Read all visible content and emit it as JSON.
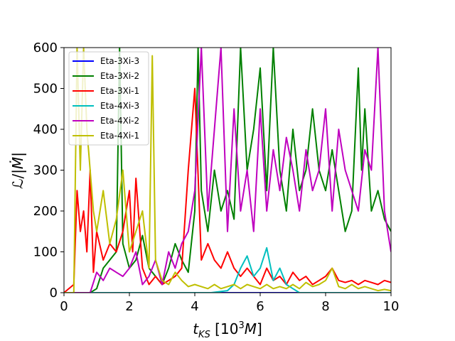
{
  "chart_data": {
    "type": "line",
    "title": "",
    "xlabel": "t_KS [10^3 M]",
    "ylabel": "L/|Ṁ|",
    "xlim": [
      0,
      10
    ],
    "ylim": [
      0,
      600
    ],
    "xticks": [
      "0",
      "2",
      "4",
      "6",
      "8",
      "10"
    ],
    "yticks": [
      "0",
      "100",
      "200",
      "300",
      "400",
      "500",
      "600"
    ],
    "grid": false,
    "legend_position": "top-left",
    "series": [
      {
        "name": "Eta-3Xi-3",
        "color": "#0000ff",
        "x": [
          0,
          10
        ],
        "y": [
          0,
          0
        ]
      },
      {
        "name": "Eta-3Xi-2",
        "color": "#008000",
        "x": [
          0,
          0.3,
          0.5,
          0.8,
          1.0,
          1.2,
          1.4,
          1.6,
          1.7,
          1.8,
          2.0,
          2.2,
          2.4,
          2.6,
          2.8,
          3.0,
          3.2,
          3.4,
          3.6,
          3.8,
          4.0,
          4.1,
          4.2,
          4.4,
          4.6,
          4.8,
          5.0,
          5.2,
          5.4,
          5.6,
          5.8,
          6.0,
          6.2,
          6.4,
          6.6,
          6.8,
          7.0,
          7.2,
          7.4,
          7.6,
          7.8,
          8.0,
          8.2,
          8.4,
          8.6,
          8.8,
          9.0,
          9.1,
          9.2,
          9.4,
          9.6,
          9.8,
          10.0
        ],
        "y": [
          0,
          0,
          0,
          0,
          10,
          60,
          80,
          100,
          600,
          120,
          60,
          80,
          140,
          60,
          40,
          20,
          60,
          120,
          80,
          50,
          200,
          600,
          250,
          150,
          300,
          200,
          250,
          180,
          600,
          300,
          400,
          550,
          250,
          600,
          300,
          200,
          400,
          250,
          300,
          450,
          300,
          250,
          350,
          250,
          150,
          200,
          550,
          300,
          450,
          200,
          250,
          180,
          150
        ]
      },
      {
        "name": "Eta-3Xi-1",
        "color": "#ff0000",
        "x": [
          0,
          0.3,
          0.4,
          0.5,
          0.6,
          0.7,
          0.8,
          0.9,
          1.0,
          1.2,
          1.4,
          1.6,
          1.8,
          2.0,
          2.1,
          2.2,
          2.4,
          2.6,
          2.8,
          3.0,
          3.2,
          3.4,
          3.6,
          3.8,
          4.0,
          4.2,
          4.4,
          4.6,
          4.8,
          5.0,
          5.2,
          5.4,
          5.6,
          5.8,
          6.0,
          6.2,
          6.4,
          6.6,
          6.8,
          7.0,
          7.2,
          7.4,
          7.6,
          7.8,
          8.0,
          8.2,
          8.4,
          8.6,
          8.8,
          9.0,
          9.2,
          9.4,
          9.6,
          9.8,
          10.0
        ],
        "y": [
          0,
          20,
          250,
          150,
          200,
          100,
          300,
          50,
          150,
          80,
          120,
          100,
          150,
          250,
          100,
          280,
          60,
          20,
          40,
          20,
          30,
          40,
          60,
          300,
          500,
          80,
          120,
          80,
          60,
          100,
          60,
          40,
          60,
          40,
          20,
          60,
          30,
          40,
          20,
          50,
          30,
          40,
          20,
          30,
          40,
          60,
          30,
          25,
          30,
          20,
          30,
          25,
          20,
          30,
          25
        ]
      },
      {
        "name": "Eta-4Xi-3",
        "color": "#00bfbf",
        "x": [
          0,
          4.5,
          5.0,
          5.2,
          5.4,
          5.6,
          5.8,
          6.0,
          6.2,
          6.4,
          6.6,
          6.8,
          7.0,
          7.2,
          7.4,
          10.0
        ],
        "y": [
          0,
          0,
          5,
          20,
          60,
          90,
          40,
          60,
          110,
          30,
          60,
          20,
          10,
          0,
          0,
          0
        ]
      },
      {
        "name": "Eta-4Xi-2",
        "color": "#bf00bf",
        "x": [
          0,
          0.8,
          1.0,
          1.2,
          1.4,
          1.6,
          1.8,
          2.0,
          2.2,
          2.4,
          2.6,
          2.8,
          3.0,
          3.2,
          3.4,
          3.6,
          3.8,
          4.0,
          4.2,
          4.4,
          4.6,
          4.8,
          5.0,
          5.2,
          5.4,
          5.6,
          5.8,
          6.0,
          6.2,
          6.4,
          6.6,
          6.8,
          7.0,
          7.2,
          7.4,
          7.6,
          7.8,
          8.0,
          8.2,
          8.4,
          8.6,
          8.8,
          9.0,
          9.2,
          9.4,
          9.6,
          9.8,
          10.0
        ],
        "y": [
          0,
          0,
          50,
          30,
          60,
          50,
          40,
          60,
          100,
          20,
          40,
          80,
          20,
          100,
          60,
          120,
          150,
          250,
          600,
          200,
          400,
          600,
          150,
          450,
          200,
          300,
          150,
          450,
          200,
          350,
          250,
          380,
          300,
          200,
          350,
          250,
          300,
          450,
          200,
          400,
          300,
          250,
          200,
          350,
          300,
          600,
          200,
          100
        ]
      },
      {
        "name": "Eta-4Xi-1",
        "color": "#bfbf00",
        "x": [
          0,
          0.3,
          0.4,
          0.5,
          0.6,
          0.7,
          0.8,
          0.9,
          1.0,
          1.2,
          1.4,
          1.6,
          1.8,
          2.0,
          2.2,
          2.4,
          2.6,
          2.7,
          2.8,
          3.0,
          3.2,
          3.4,
          3.6,
          3.8,
          4.0,
          4.2,
          4.4,
          4.6,
          4.8,
          5.0,
          5.2,
          5.4,
          5.6,
          5.8,
          6.0,
          6.2,
          6.4,
          6.6,
          6.8,
          7.0,
          7.2,
          7.4,
          7.6,
          7.8,
          8.0,
          8.2,
          8.4,
          8.6,
          8.8,
          9.0,
          9.2,
          9.4,
          9.6,
          9.8,
          10.0
        ],
        "y": [
          0,
          0,
          600,
          300,
          600,
          400,
          300,
          200,
          150,
          250,
          120,
          180,
          300,
          100,
          150,
          200,
          60,
          580,
          80,
          30,
          20,
          50,
          30,
          15,
          20,
          15,
          10,
          20,
          10,
          15,
          20,
          10,
          20,
          15,
          10,
          20,
          10,
          15,
          10,
          20,
          10,
          25,
          15,
          20,
          30,
          60,
          15,
          10,
          20,
          10,
          15,
          10,
          5,
          8,
          5
        ]
      }
    ]
  }
}
